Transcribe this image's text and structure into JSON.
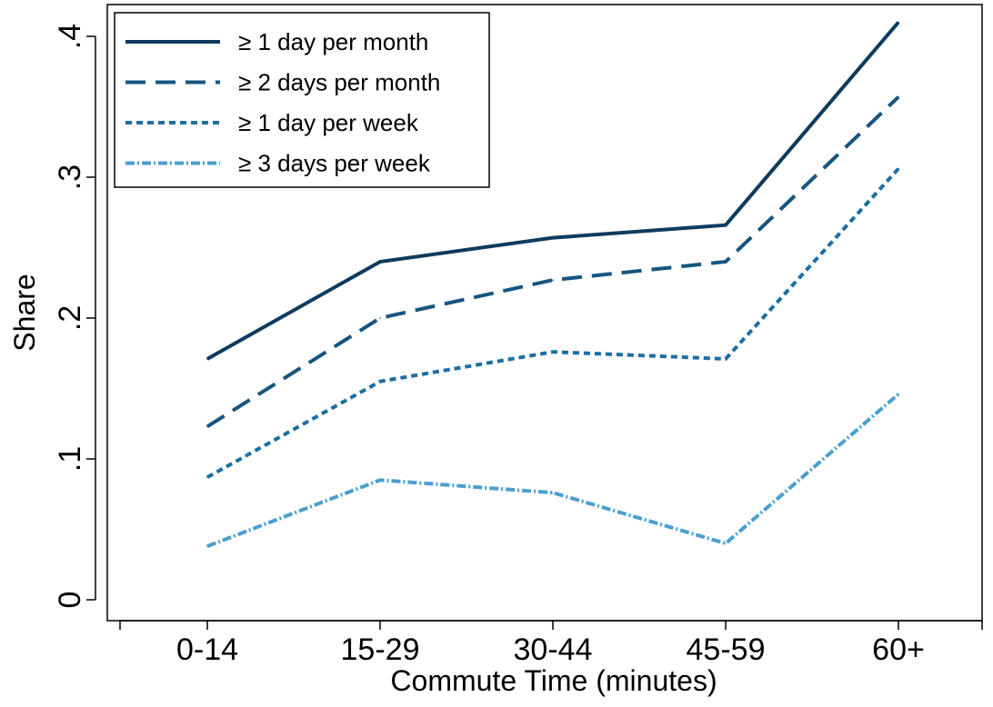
{
  "chart_data": {
    "type": "line",
    "title": "",
    "xlabel": "Commute Time (minutes)",
    "ylabel": "Share",
    "categories": [
      "0-14",
      "15-29",
      "30-44",
      "45-59",
      "60+"
    ],
    "yticks": [
      {
        "value": 0,
        "label": "0"
      },
      {
        "value": 0.1,
        "label": ".1"
      },
      {
        "value": 0.2,
        "label": ".2"
      },
      {
        "value": 0.3,
        "label": ".3"
      },
      {
        "value": 0.4,
        "label": ".4"
      }
    ],
    "ylim": [
      0,
      0.4
    ],
    "grid": false,
    "legend_position": "top-left",
    "series": [
      {
        "name": "≥ 1 day per month",
        "values": [
          0.171,
          0.24,
          0.257,
          0.266,
          0.41
        ],
        "color": "#0d3b5e",
        "style": "solid"
      },
      {
        "name": "≥ 2 days per month",
        "values": [
          0.123,
          0.2,
          0.227,
          0.24,
          0.357
        ],
        "color": "#17557f",
        "style": "dash"
      },
      {
        "name": "≥ 1 day per week",
        "values": [
          0.087,
          0.155,
          0.176,
          0.171,
          0.306
        ],
        "color": "#1b6fa3",
        "style": "dot"
      },
      {
        "name": "≥ 3 days per week",
        "values": [
          0.038,
          0.085,
          0.076,
          0.04,
          0.146
        ],
        "color": "#4a9fcf",
        "style": "dashdot"
      }
    ]
  }
}
